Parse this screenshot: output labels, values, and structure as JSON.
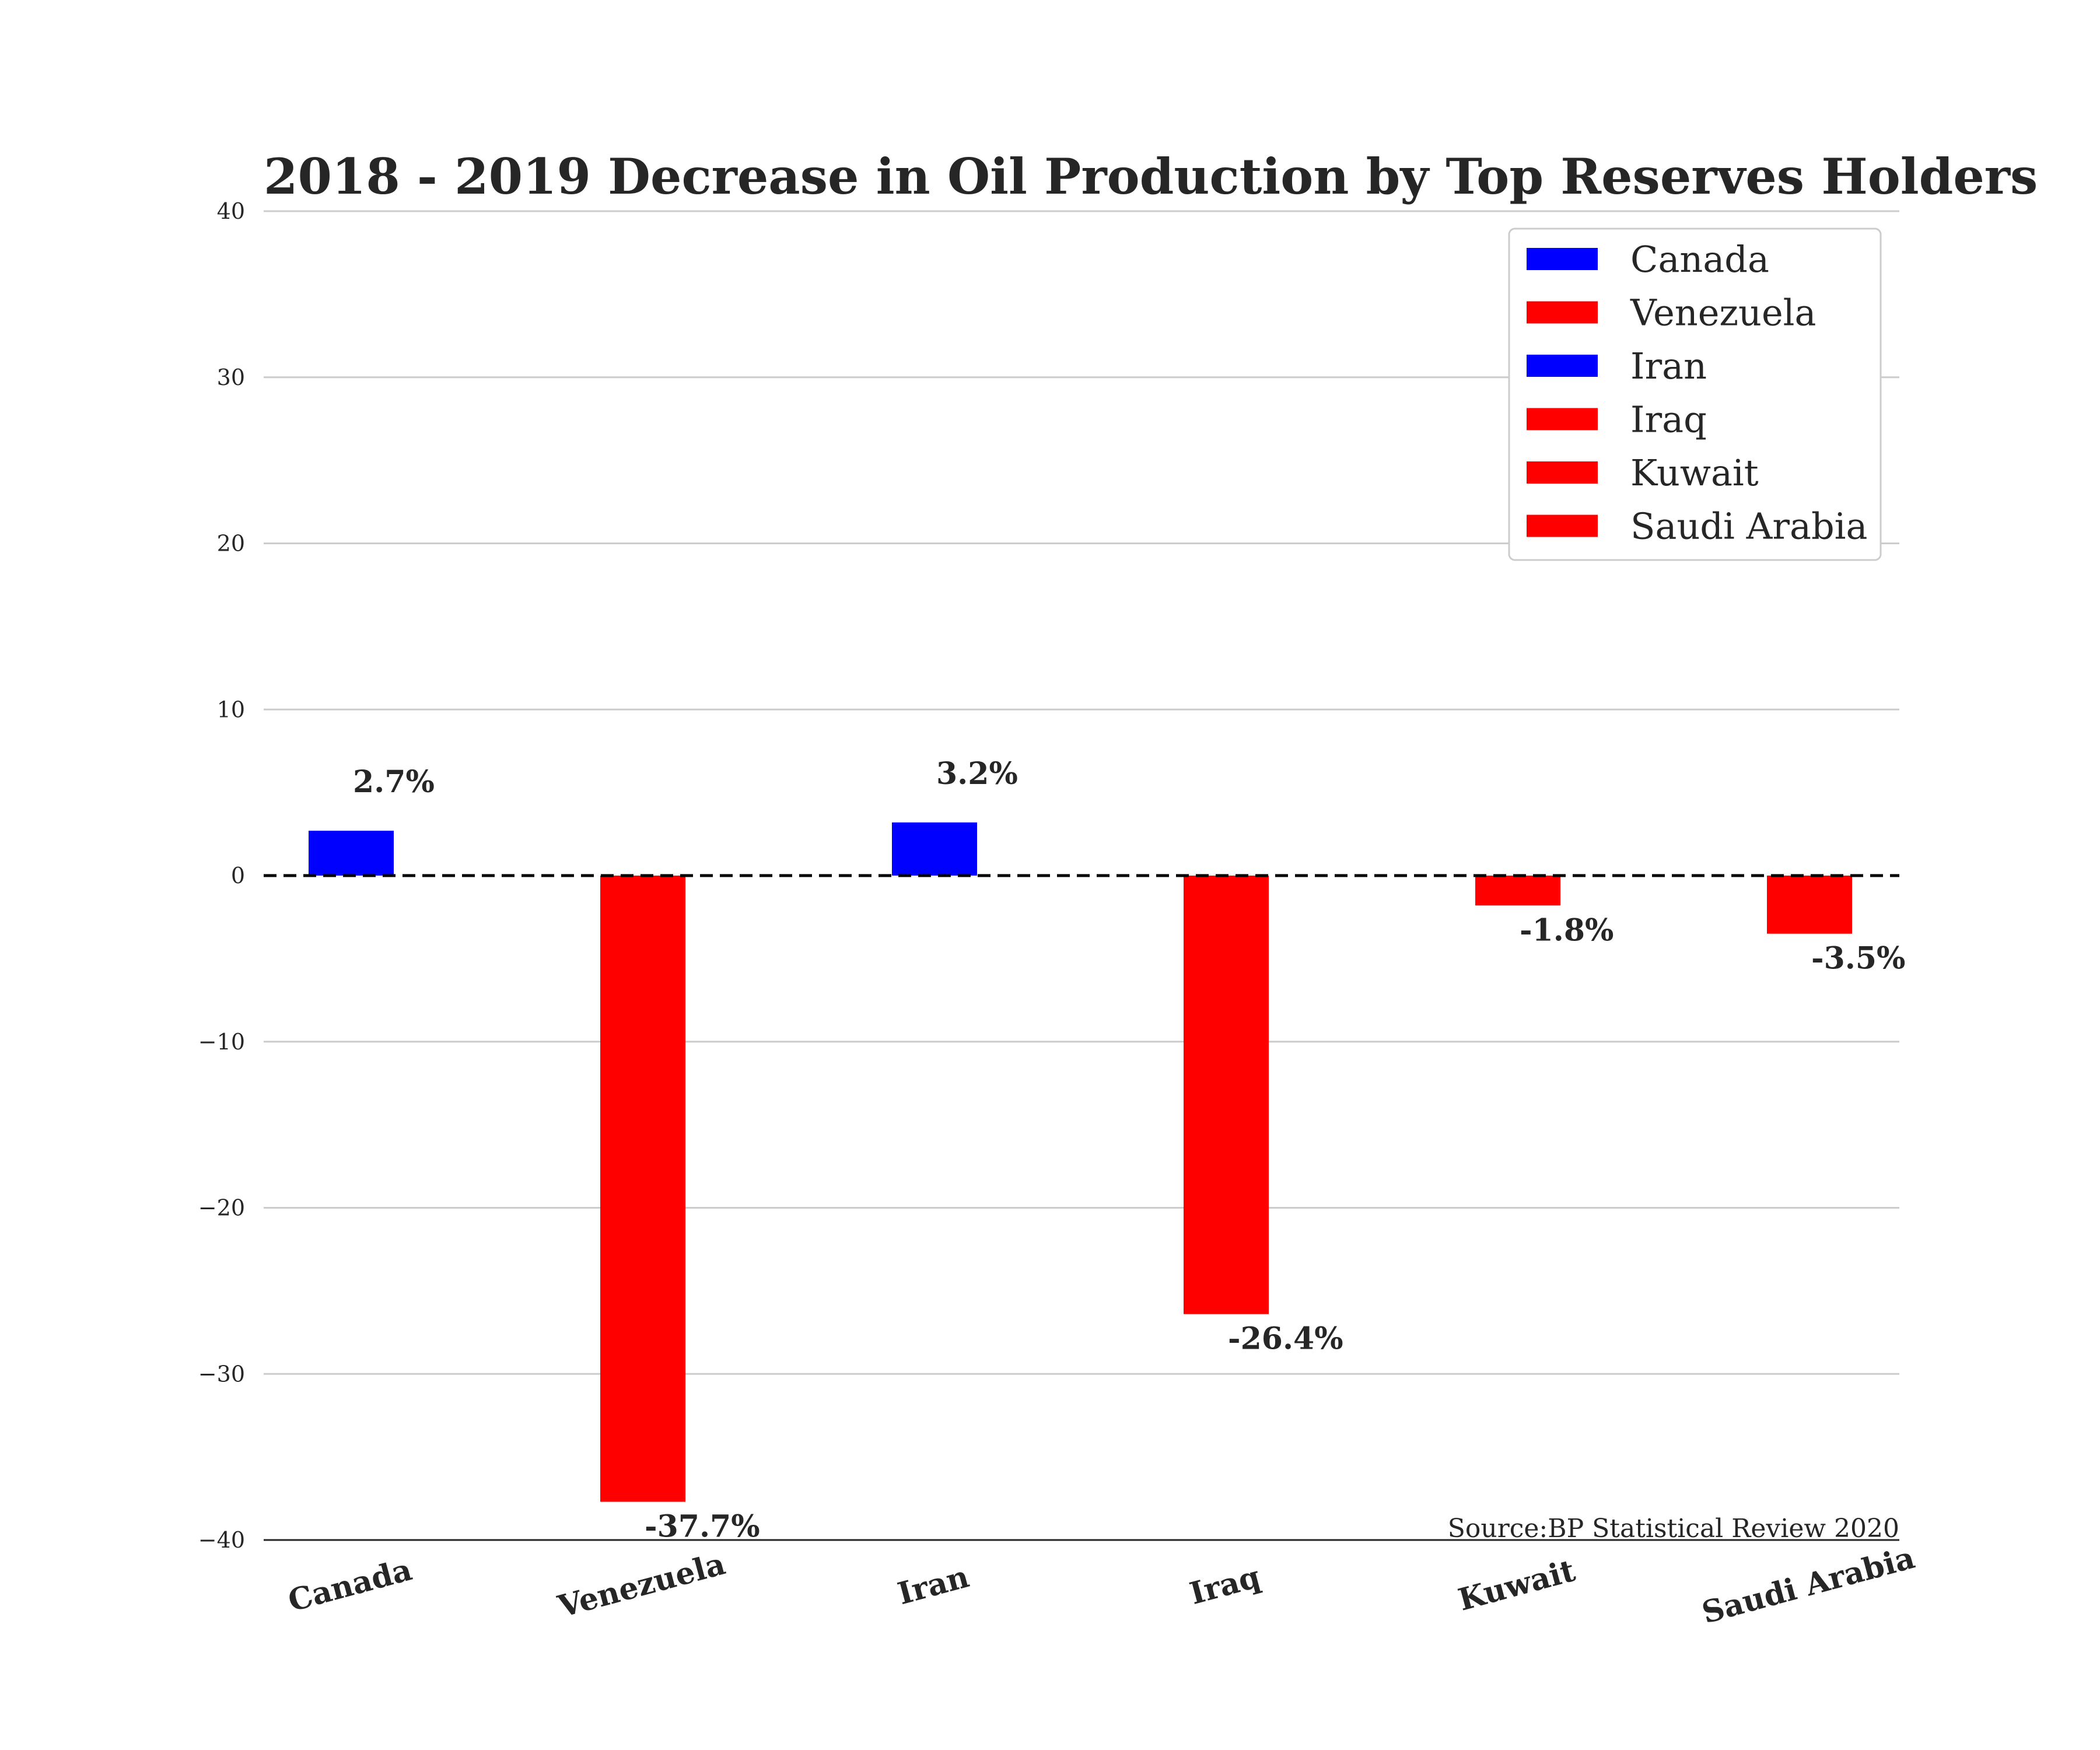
{
  "chart_data": {
    "type": "bar",
    "title": "2018 - 2019 Decrease in Oil Production by Top Reserves Holders",
    "xlabel": "",
    "ylabel": "",
    "categories": [
      "Canada",
      "Venezuela",
      "Iran",
      "Iraq",
      "Kuwait",
      "Saudi Arabia"
    ],
    "values": [
      2.7,
      -37.7,
      3.2,
      -26.4,
      -1.8,
      -3.5
    ],
    "data_labels": [
      "2.7%",
      "-37.7%",
      "3.2%",
      "-26.4%",
      "-1.8%",
      "-3.5%"
    ],
    "bar_colors": [
      "#0000ff",
      "#ff0000",
      "#0000ff",
      "#ff0000",
      "#ff0000",
      "#ff0000"
    ],
    "ylim": [
      -40,
      40
    ],
    "yticks": [
      40,
      30,
      20,
      10,
      0,
      -10,
      -20,
      -30,
      -40
    ],
    "ytick_labels": [
      "40",
      "30",
      "20",
      "10",
      "0",
      "−10",
      "−20",
      "−30",
      "−40"
    ],
    "grid": true,
    "zero_line": "dashed",
    "legend": {
      "placement": "top-right",
      "entries": [
        {
          "label": "Canada",
          "color": "#0000ff"
        },
        {
          "label": "Venezuela",
          "color": "#ff0000"
        },
        {
          "label": "Iran",
          "color": "#0000ff"
        },
        {
          "label": "Iraq",
          "color": "#ff0000"
        },
        {
          "label": "Kuwait",
          "color": "#ff0000"
        },
        {
          "label": "Saudi Arabia",
          "color": "#ff0000"
        }
      ]
    },
    "annotation": "Source:BP Statistical Review 2020"
  }
}
